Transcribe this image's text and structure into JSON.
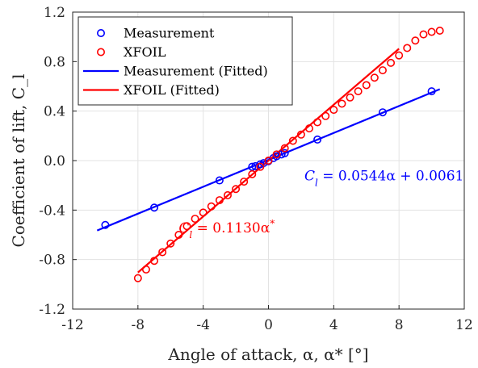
{
  "chart_data": {
    "type": "scatter",
    "xlabel": "Angle of attack, α, α* [°]",
    "ylabel": "Coefficient of lift, C_l",
    "xlim": [
      -12,
      12
    ],
    "ylim": [
      -1.2,
      1.2
    ],
    "x_ticks": [
      "-12",
      "-8",
      "-4",
      "0",
      "4",
      "8",
      "12"
    ],
    "y_ticks": [
      "-1.2",
      "-0.8",
      "-0.4",
      "0.0",
      "0.4",
      "0.8",
      "1.2"
    ],
    "grid": true,
    "legend_position": "top-left",
    "series": [
      {
        "name": "Measurement",
        "kind": "markers",
        "color": "#0000ff",
        "points": [
          [
            -10,
            -0.52
          ],
          [
            -7,
            -0.38
          ],
          [
            -3,
            -0.16
          ],
          [
            -1,
            -0.05
          ],
          [
            -0.8,
            -0.045
          ],
          [
            -0.5,
            -0.03
          ],
          [
            -0.3,
            -0.02
          ],
          [
            0,
            -0.005
          ],
          [
            0.3,
            0.02
          ],
          [
            0.5,
            0.035
          ],
          [
            0.8,
            0.05
          ],
          [
            1,
            0.06
          ],
          [
            3,
            0.17
          ],
          [
            7,
            0.39
          ],
          [
            10,
            0.56
          ]
        ]
      },
      {
        "name": "XFOIL",
        "kind": "markers",
        "color": "#ff0000",
        "points": [
          [
            -8,
            -0.95
          ],
          [
            -7.5,
            -0.88
          ],
          [
            -7,
            -0.81
          ],
          [
            -6.5,
            -0.74
          ],
          [
            -6,
            -0.67
          ],
          [
            -5.5,
            -0.6
          ],
          [
            -5,
            -0.53
          ],
          [
            -4.5,
            -0.47
          ],
          [
            -4,
            -0.42
          ],
          [
            -3.5,
            -0.37
          ],
          [
            -3,
            -0.32
          ],
          [
            -2.5,
            -0.28
          ],
          [
            -2,
            -0.23
          ],
          [
            -1.5,
            -0.17
          ],
          [
            -1,
            -0.11
          ],
          [
            -0.5,
            -0.05
          ],
          [
            0,
            0.0
          ],
          [
            0.5,
            0.05
          ],
          [
            1,
            0.1
          ],
          [
            1.5,
            0.16
          ],
          [
            2,
            0.21
          ],
          [
            2.5,
            0.26
          ],
          [
            3,
            0.31
          ],
          [
            3.5,
            0.36
          ],
          [
            4,
            0.41
          ],
          [
            4.5,
            0.46
          ],
          [
            5,
            0.51
          ],
          [
            5.5,
            0.56
          ],
          [
            6,
            0.61
          ],
          [
            6.5,
            0.67
          ],
          [
            7,
            0.73
          ],
          [
            7.5,
            0.79
          ],
          [
            8,
            0.85
          ],
          [
            8.5,
            0.91
          ],
          [
            9,
            0.97
          ],
          [
            9.5,
            1.02
          ],
          [
            10,
            1.04
          ],
          [
            10.5,
            1.05
          ]
        ]
      },
      {
        "name": "Measurement (Fitted)",
        "kind": "line",
        "color": "#0000ff",
        "points": [
          [
            -10.5,
            -0.565
          ],
          [
            10.5,
            0.577
          ]
        ]
      },
      {
        "name": "XFOIL (Fitted)",
        "kind": "line",
        "color": "#ff0000",
        "points": [
          [
            -8,
            -0.904
          ],
          [
            8,
            0.904
          ]
        ]
      }
    ],
    "annotations": [
      {
        "text": "C_l = 0.0544α + 0.0061",
        "x": 2.2,
        "y": -0.16,
        "color": "#0000ff"
      },
      {
        "text": "C_l = 0.1130α*",
        "x": -5.5,
        "y": -0.58,
        "color": "#ff0000"
      }
    ]
  },
  "legend": {
    "items": [
      {
        "label": "Measurement",
        "kind": "marker",
        "color": "#0000ff"
      },
      {
        "label": "XFOIL",
        "kind": "marker",
        "color": "#ff0000"
      },
      {
        "label": "Measurement (Fitted)",
        "kind": "line",
        "color": "#0000ff"
      },
      {
        "label": "XFOIL (Fitted)",
        "kind": "line",
        "color": "#ff0000"
      }
    ]
  }
}
